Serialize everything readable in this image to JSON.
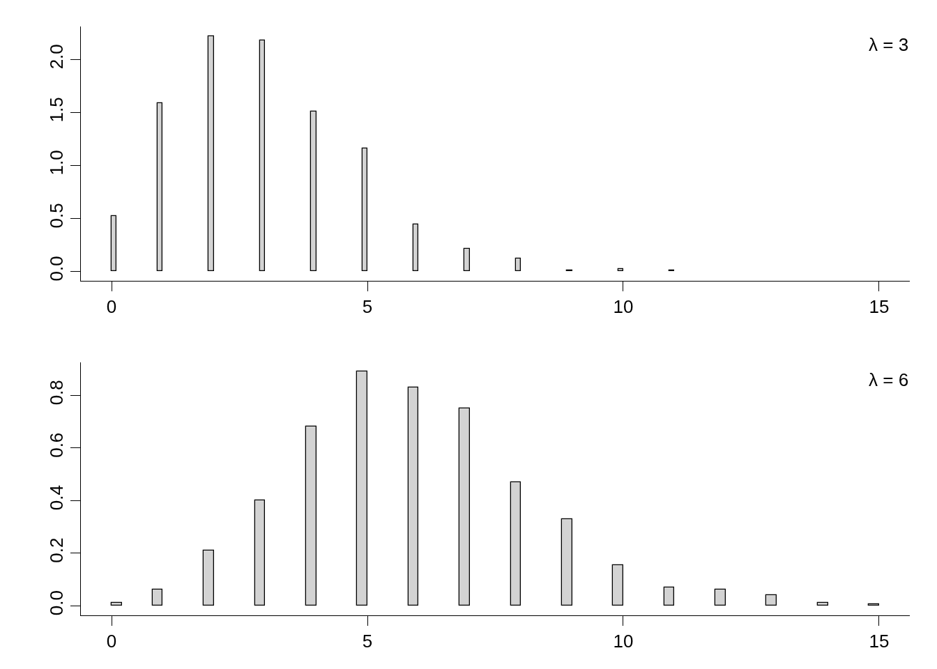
{
  "chart_data": [
    {
      "type": "histogram",
      "color": "#d3d3d3",
      "grid": false,
      "annotations": [
        "λ = 3"
      ],
      "bins": [
        0,
        0.1,
        0.9,
        1.0,
        1.9,
        2.0,
        2.9,
        3.0,
        3.9,
        4.0,
        4.9,
        5.0,
        5.9,
        6.0,
        6.9,
        7.0,
        7.9,
        8.0,
        8.9,
        9.0,
        9.9,
        10.0,
        10.9,
        11.0
      ],
      "values": [
        0.52,
        0,
        1.59,
        0,
        2.22,
        0,
        2.18,
        0,
        1.51,
        0,
        1.16,
        0,
        0.44,
        0,
        0.21,
        0,
        0.12,
        0,
        0.01,
        0,
        0.02,
        0,
        0.01
      ],
      "xlim": [
        -0.6,
        15.6
      ],
      "xticks": [
        0,
        5,
        10,
        15
      ],
      "ylim": [
        -0.09,
        2.31
      ],
      "yticks": [
        {
          "value": 0,
          "label": "0.0"
        },
        0.5,
        {
          "value": 1,
          "label": "1.0"
        },
        1.5,
        {
          "value": 2,
          "label": "2.0"
        }
      ]
    },
    {
      "type": "histogram",
      "color": "#d3d3d3",
      "grid": false,
      "annotations": [
        "λ = 6"
      ],
      "bins": [
        0,
        0.2,
        0.8,
        1.0,
        1.8,
        2.0,
        2.8,
        3.0,
        3.8,
        4.0,
        4.8,
        5.0,
        5.8,
        6.0,
        6.8,
        7.0,
        7.8,
        8.0,
        8.8,
        9.0,
        9.8,
        10.0,
        10.8,
        11.0,
        11.8,
        12.0,
        12.8,
        13.0,
        13.8,
        14.0,
        14.8,
        15.0
      ],
      "values": [
        0.01,
        0,
        0.06,
        0,
        0.21,
        0,
        0.4,
        0,
        0.68,
        0,
        0.89,
        0,
        0.83,
        0,
        0.75,
        0,
        0.47,
        0,
        0.33,
        0,
        0.155,
        0,
        0.07,
        0,
        0.06,
        0,
        0.04,
        0,
        0.01,
        0,
        0.005
      ],
      "xlim": [
        -0.6,
        15.6
      ],
      "xticks": [
        0,
        5,
        10,
        15
      ],
      "ylim": [
        -0.037,
        0.925
      ],
      "yticks": [
        {
          "value": 0,
          "label": "0.0"
        },
        0.2,
        0.4,
        0.6,
        0.8
      ]
    }
  ]
}
